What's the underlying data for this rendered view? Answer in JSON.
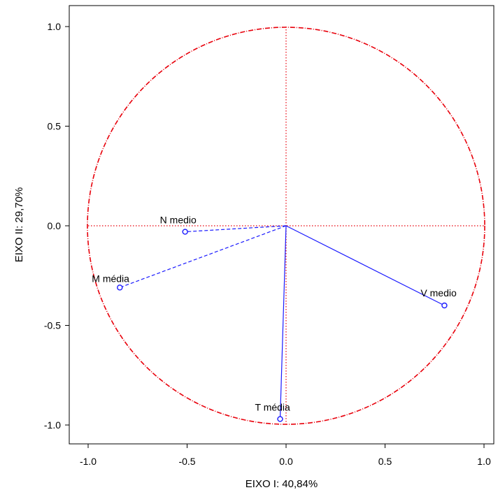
{
  "chart_data": {
    "type": "scatter",
    "xlabel": "EIXO I: 40,84%",
    "ylabel": "EIXO II: 29,70%",
    "xlim": [
      -1.05,
      1.05
    ],
    "ylim": [
      -1.1,
      1.1
    ],
    "x_ticks": [
      -1.0,
      -0.5,
      0.0,
      0.5,
      1.0
    ],
    "x_tick_labels": [
      "-1.0",
      "-0.5",
      "0.0",
      "0.5",
      "1.0"
    ],
    "y_ticks": [
      -1.0,
      -0.5,
      0.0,
      0.5,
      1.0
    ],
    "y_tick_labels": [
      "-1.0",
      "-0.5",
      "0.0",
      "0.5",
      "1.0"
    ],
    "unit_circle": true,
    "grid": false,
    "points": [
      {
        "label": "N medio",
        "x": -0.51,
        "y": -0.03,
        "line": "dashed"
      },
      {
        "label": "M média",
        "x": -0.84,
        "y": -0.31,
        "line": "dashed"
      },
      {
        "label": "T média",
        "x": -0.03,
        "y": -0.97,
        "line": "solid"
      },
      {
        "label": "V medio",
        "x": 0.8,
        "y": -0.4,
        "line": "solid"
      }
    ],
    "colors": {
      "circle": "#e8000b",
      "vectors": "#1a1aff",
      "frame": "#000000"
    }
  }
}
